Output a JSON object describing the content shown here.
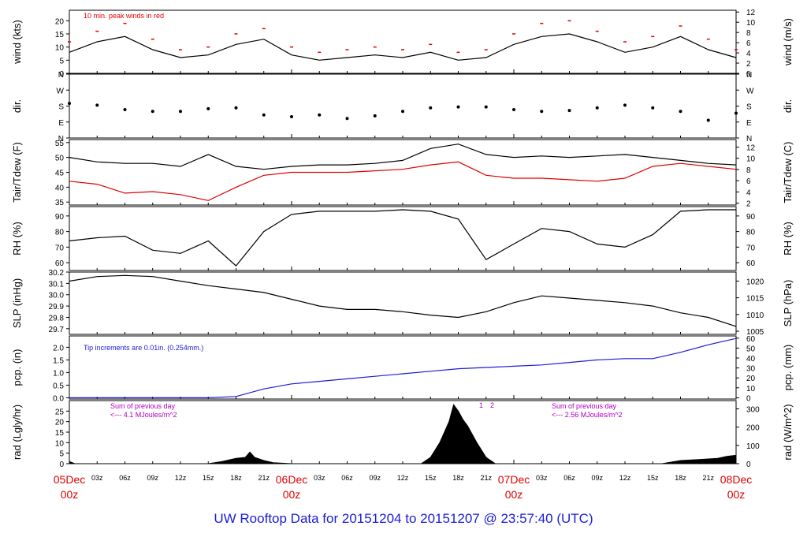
{
  "title": "UW Rooftop Data for 20151204  to  20151207 @ 23:57:40  (UTC)",
  "colors": {
    "black": "#000000",
    "red": "#e00000",
    "blue": "#1c1cd8",
    "purple": "#b000c0"
  },
  "x_ticks": {
    "small": [
      "03z",
      "06z",
      "09z",
      "12z",
      "15z",
      "18z",
      "21z",
      "03z",
      "06z",
      "09z",
      "12z",
      "15z",
      "18z",
      "21z",
      "03z",
      "06z",
      "09z",
      "12z",
      "15z",
      "18z",
      "21z"
    ],
    "days": [
      {
        "date": "05Dec",
        "hour": "00z"
      },
      {
        "date": "06Dec",
        "hour": "00z"
      },
      {
        "date": "07Dec",
        "hour": "00z"
      },
      {
        "date": "08Dec",
        "hour": "00z"
      }
    ]
  },
  "chart_data": [
    {
      "type": "line",
      "key": "wind",
      "ylabel": "wind (kts)",
      "ylabel_right": "wind (m/s)",
      "ylim": [
        0,
        24
      ],
      "yticks": [
        0,
        5,
        10,
        15,
        20
      ],
      "yticks_right": [
        0,
        2,
        4,
        6,
        8,
        10,
        12
      ],
      "annotation": "10 min. peak winds in red",
      "x": [
        0,
        3,
        6,
        9,
        12,
        15,
        18,
        21,
        24,
        27,
        30,
        33,
        36,
        39,
        42,
        45,
        48,
        51,
        54,
        57,
        60,
        63,
        66,
        69,
        72
      ],
      "series": [
        {
          "values": [
            8,
            12,
            14,
            9,
            6,
            7,
            11,
            13,
            7,
            5,
            6,
            7,
            6,
            8,
            5,
            6,
            11,
            14,
            15,
            12,
            8,
            10,
            14,
            9,
            6
          ]
        },
        {
          "values": [
            12,
            16,
            19,
            13,
            9,
            10,
            15,
            17,
            10,
            8,
            9,
            10,
            9,
            11,
            8,
            9,
            15,
            19,
            20,
            16,
            12,
            14,
            18,
            13,
            9
          ]
        }
      ]
    },
    {
      "type": "scatter",
      "key": "dir",
      "ylabel": "dir.",
      "ylabel_right": "dir.",
      "ylim": [
        0,
        360
      ],
      "yticklabels": [
        "N",
        "E",
        "S",
        "W",
        "N"
      ],
      "yticks": [
        0,
        90,
        180,
        270,
        360
      ],
      "x": [
        0,
        3,
        6,
        9,
        12,
        15,
        18,
        21,
        24,
        27,
        30,
        33,
        36,
        39,
        42,
        45,
        48,
        51,
        54,
        57,
        60,
        63,
        66,
        69,
        72
      ],
      "values": [
        195,
        185,
        160,
        150,
        150,
        165,
        170,
        130,
        120,
        130,
        110,
        125,
        150,
        170,
        175,
        175,
        160,
        150,
        155,
        170,
        185,
        170,
        150,
        100,
        140
      ]
    },
    {
      "type": "line",
      "key": "temp",
      "ylabel": "Tair/Tdew (F)",
      "ylabel_right": "Tair/Tdew (C)",
      "ylim": [
        34,
        56
      ],
      "yticks": [
        35,
        40,
        45,
        50,
        55
      ],
      "yticks_right": [
        2,
        4,
        6,
        8,
        10,
        12
      ],
      "x": [
        0,
        3,
        6,
        9,
        12,
        15,
        18,
        21,
        24,
        27,
        30,
        33,
        36,
        39,
        42,
        45,
        48,
        51,
        54,
        57,
        60,
        63,
        66,
        69,
        72
      ],
      "series": [
        {
          "values": [
            50,
            48.5,
            48,
            48,
            47,
            51,
            47,
            46,
            47,
            47.5,
            47.5,
            48,
            49,
            53,
            54.5,
            51,
            50,
            50.5,
            50,
            50.5,
            51,
            50,
            49,
            48,
            47.5
          ]
        },
        {
          "values": [
            42,
            41,
            38,
            38.5,
            37.5,
            35.5,
            40,
            44,
            45,
            45,
            45,
            45.5,
            46,
            47.5,
            48.5,
            44,
            43,
            43,
            42.5,
            42,
            43,
            47,
            48,
            47,
            46
          ]
        }
      ]
    },
    {
      "type": "line",
      "key": "rh",
      "ylabel": "RH (%)",
      "ylabel_right": "RH (%)",
      "ylim": [
        55,
        96
      ],
      "yticks": [
        60,
        70,
        80,
        90
      ],
      "yticks_right": [
        60,
        70,
        80,
        90
      ],
      "x": [
        0,
        3,
        6,
        9,
        12,
        15,
        18,
        21,
        24,
        27,
        30,
        33,
        36,
        39,
        42,
        45,
        48,
        51,
        54,
        57,
        60,
        63,
        66,
        69,
        72
      ],
      "values": [
        74,
        76,
        77,
        68,
        66,
        74,
        58,
        80,
        91,
        93,
        93,
        93,
        94,
        93,
        88,
        62,
        72,
        82,
        80,
        72,
        70,
        78,
        93,
        94,
        94
      ]
    },
    {
      "type": "line",
      "key": "slp",
      "ylabel": "SLP (inHg)",
      "ylabel_right": "SLP (hPa)",
      "ylim": [
        29.65,
        30.2
      ],
      "yticks": [
        29.7,
        29.8,
        29.9,
        30.0,
        30.1,
        30.2
      ],
      "yticks_right": [
        1005,
        1010,
        1015,
        1020
      ],
      "x": [
        0,
        3,
        6,
        9,
        12,
        15,
        18,
        21,
        24,
        27,
        30,
        33,
        36,
        39,
        42,
        45,
        48,
        51,
        54,
        57,
        60,
        63,
        66,
        69,
        72
      ],
      "values": [
        30.12,
        30.16,
        30.17,
        30.16,
        30.12,
        30.08,
        30.05,
        30.02,
        29.96,
        29.9,
        29.87,
        29.87,
        29.85,
        29.82,
        29.8,
        29.85,
        29.93,
        29.99,
        29.97,
        29.95,
        29.93,
        29.9,
        29.84,
        29.8,
        29.72
      ]
    },
    {
      "type": "line",
      "key": "pcp",
      "ylabel": "pcp. (in)",
      "ylabel_right": "pcp. (mm)",
      "ylim": [
        -0.05,
        2.45
      ],
      "yticks": [
        0,
        0.5,
        1.0,
        1.5,
        2.0
      ],
      "yticks_right": [
        0,
        10,
        20,
        30,
        40,
        50,
        60
      ],
      "annotation": "Tip increments are 0.01in. (0.254mm.)",
      "x": [
        0,
        3,
        6,
        9,
        12,
        15,
        18,
        21,
        24,
        27,
        30,
        33,
        36,
        39,
        42,
        45,
        48,
        51,
        54,
        57,
        60,
        63,
        66,
        69,
        72
      ],
      "values": [
        0,
        0,
        0,
        0,
        0,
        0,
        0.05,
        0.35,
        0.55,
        0.65,
        0.75,
        0.85,
        0.95,
        1.05,
        1.15,
        1.2,
        1.25,
        1.3,
        1.4,
        1.5,
        1.55,
        1.55,
        1.8,
        2.1,
        2.35
      ]
    },
    {
      "type": "area",
      "key": "rad",
      "ylabel": "rad (Lgly/hr)",
      "ylabel_right": "rad (W/m^2)",
      "ylim": [
        0,
        30
      ],
      "yticks": [
        0,
        5,
        10,
        15,
        20,
        25
      ],
      "yticks_right": [
        0,
        100,
        200,
        300
      ],
      "annotations": [
        {
          "line1": "Sum of previous day",
          "line2": "<--- 4.1 MJoules/m^2"
        },
        {
          "line1": "Sum of previous day",
          "line2": "<--- 2.56 MJoules/m^2"
        }
      ],
      "marks": [
        "1",
        "2"
      ],
      "x": [
        0,
        0.6,
        15,
        16.5,
        18,
        19,
        19.5,
        20,
        21,
        22,
        24,
        38,
        39,
        40,
        41,
        41.5,
        42,
        42.5,
        43,
        44,
        45,
        46,
        64,
        66,
        68,
        70,
        71,
        72
      ],
      "values": [
        1,
        0,
        0,
        1,
        2.5,
        3,
        5.5,
        3,
        1.5,
        0.5,
        0,
        0,
        3,
        10,
        20,
        28,
        25,
        21,
        18,
        10,
        3,
        0,
        0,
        1.5,
        2,
        2.5,
        3.5,
        4
      ]
    }
  ]
}
